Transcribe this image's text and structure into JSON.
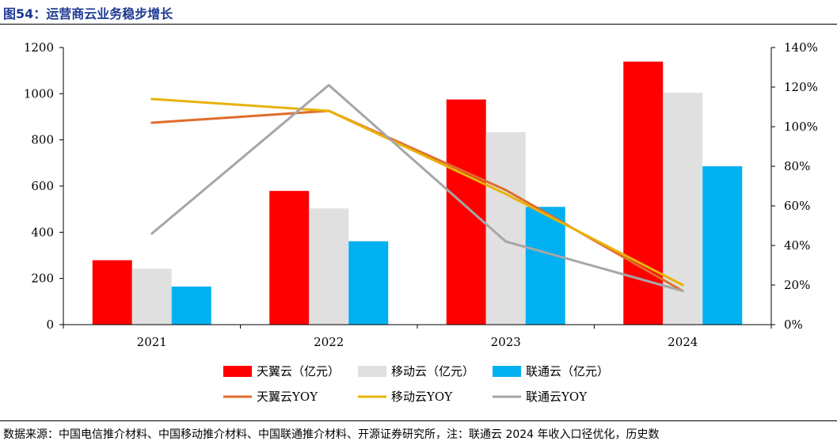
{
  "title": "图54：运营商云业务稳步增长",
  "source": "数据来源：中国电信推介材料、中国移动推介材料、中国联通推介材料、开源证券研究所，注：联通云 2024 年收入口径优化，历史数",
  "chart_data": {
    "type": "bar",
    "categories": [
      "2021",
      "2022",
      "2023",
      "2024"
    ],
    "y_left": {
      "ticks": [
        "0",
        "200",
        "400",
        "600",
        "800",
        "1000",
        "1200"
      ],
      "ylim": [
        0,
        1200
      ]
    },
    "y_right": {
      "ticks": [
        "0%",
        "20%",
        "40%",
        "60%",
        "80%",
        "100%",
        "120%",
        "140%"
      ],
      "ylim": [
        0,
        1.4
      ]
    },
    "bars": [
      {
        "name": "天翼云（亿元）",
        "color": "#ff0000",
        "values": [
          279,
          579,
          975,
          1139
        ]
      },
      {
        "name": "移动云（亿元）",
        "color": "#e0e0e0",
        "values": [
          242,
          503,
          833,
          1004
        ]
      },
      {
        "name": "联通云（亿元）",
        "color": "#00b0f0",
        "values": [
          165,
          361,
          510,
          686
        ]
      }
    ],
    "lines": [
      {
        "name": "天翼云YOY",
        "color": "#e06c2c",
        "values": [
          1.02,
          1.08,
          0.68,
          0.17
        ]
      },
      {
        "name": "移动云YOY",
        "color": "#e8b20a",
        "values": [
          1.14,
          1.08,
          0.66,
          0.2
        ]
      },
      {
        "name": "联通云YOY",
        "color": "#a6a6a6",
        "values": [
          0.46,
          1.21,
          0.42,
          0.17
        ]
      }
    ],
    "legend_position": "bottom",
    "grid": false
  }
}
